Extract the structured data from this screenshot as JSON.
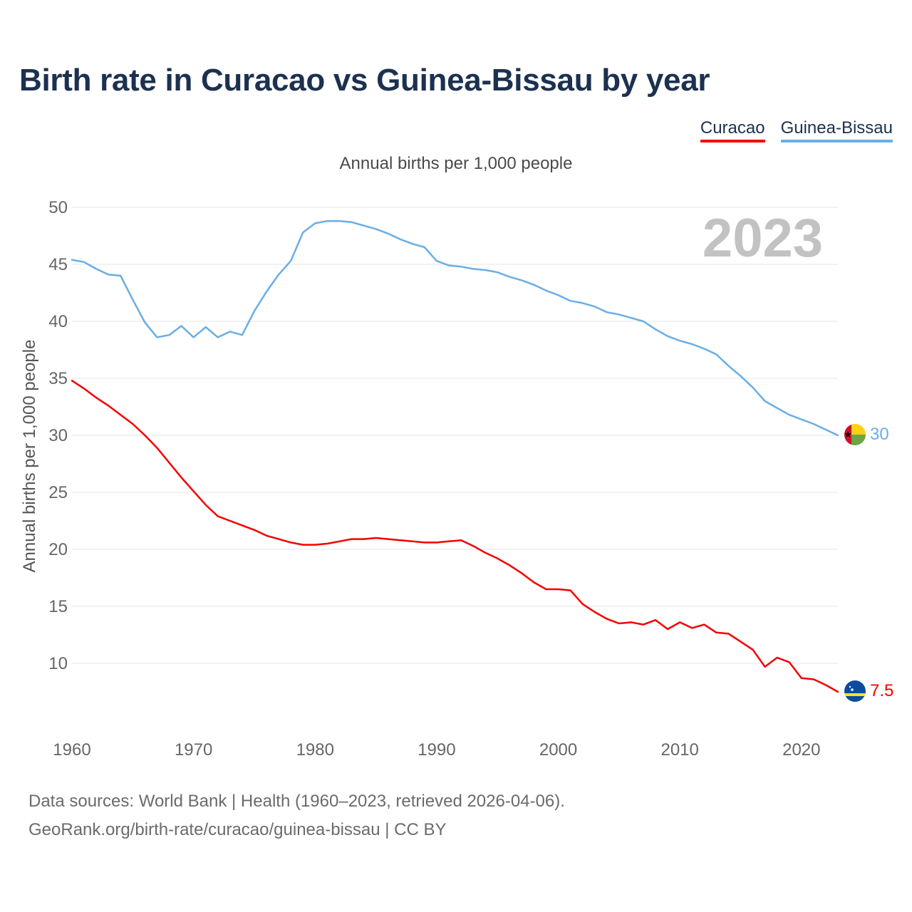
{
  "chart_data": {
    "type": "line",
    "title": "Birth rate in Curacao vs Guinea-Bissau by year",
    "subtitle": "Annual births per 1,000 people",
    "ylabel": "Annual births per 1,000 people",
    "xlabel": "",
    "xlim": [
      1960,
      2023
    ],
    "ylim": [
      5,
      50
    ],
    "yticks": [
      10,
      15,
      20,
      25,
      30,
      35,
      40,
      45,
      50
    ],
    "xticks": [
      1960,
      1970,
      1980,
      1990,
      2000,
      2010,
      2020
    ],
    "year_badge": "2023",
    "x": [
      1960,
      1961,
      1962,
      1963,
      1964,
      1965,
      1966,
      1967,
      1968,
      1969,
      1970,
      1971,
      1972,
      1973,
      1974,
      1975,
      1976,
      1977,
      1978,
      1979,
      1980,
      1981,
      1982,
      1983,
      1984,
      1985,
      1986,
      1987,
      1988,
      1989,
      1990,
      1991,
      1992,
      1993,
      1994,
      1995,
      1996,
      1997,
      1998,
      1999,
      2000,
      2001,
      2002,
      2003,
      2004,
      2005,
      2006,
      2007,
      2008,
      2009,
      2010,
      2011,
      2012,
      2013,
      2014,
      2015,
      2016,
      2017,
      2018,
      2019,
      2020,
      2021,
      2022,
      2023
    ],
    "series": [
      {
        "name": "Curacao",
        "color": "#f50000",
        "end_label": "7.5",
        "flag": "curacao-flag-icon",
        "values": [
          34.8,
          34.1,
          33.3,
          32.6,
          31.8,
          31.0,
          30.0,
          28.9,
          27.6,
          26.3,
          25.1,
          23.9,
          22.9,
          22.5,
          22.1,
          21.7,
          21.2,
          20.9,
          20.6,
          20.4,
          20.4,
          20.5,
          20.7,
          20.9,
          20.9,
          21.0,
          20.9,
          20.8,
          20.7,
          20.6,
          20.6,
          20.7,
          20.8,
          20.3,
          19.7,
          19.2,
          18.6,
          17.9,
          17.1,
          16.5,
          16.5,
          16.4,
          15.2,
          14.5,
          13.9,
          13.5,
          13.6,
          13.4,
          13.8,
          13.0,
          13.6,
          13.1,
          13.4,
          12.7,
          12.6,
          11.9,
          11.2,
          9.7,
          10.5,
          10.1,
          8.7,
          8.6,
          8.1,
          7.5
        ]
      },
      {
        "name": "Guinea-Bissau",
        "color": "#6aaee6",
        "end_label": "30",
        "flag": "guinea-bissau-flag-icon",
        "values": [
          45.4,
          45.2,
          44.6,
          44.1,
          44.0,
          41.9,
          39.9,
          38.6,
          38.8,
          39.6,
          38.6,
          39.5,
          38.6,
          39.1,
          38.8,
          40.9,
          42.6,
          44.1,
          45.3,
          47.8,
          48.6,
          48.8,
          48.8,
          48.7,
          48.4,
          48.1,
          47.7,
          47.2,
          46.8,
          46.5,
          45.3,
          44.9,
          44.8,
          44.6,
          44.5,
          44.3,
          43.9,
          43.6,
          43.2,
          42.7,
          42.3,
          41.8,
          41.6,
          41.3,
          40.8,
          40.6,
          40.3,
          40.0,
          39.3,
          38.7,
          38.3,
          38.0,
          37.6,
          37.1,
          36.1,
          35.2,
          34.2,
          33.0,
          32.4,
          31.8,
          31.4,
          31.0,
          30.5,
          30.0
        ]
      }
    ]
  },
  "legend": {
    "curacao": "Curacao",
    "guinea": "Guinea-Bissau"
  },
  "footer": {
    "line1": "Data sources: World Bank | Health (1960–2023, retrieved 2026-04-06).",
    "line2": "GeoRank.org/birth-rate/curacao/guinea-bissau | CC BY"
  }
}
